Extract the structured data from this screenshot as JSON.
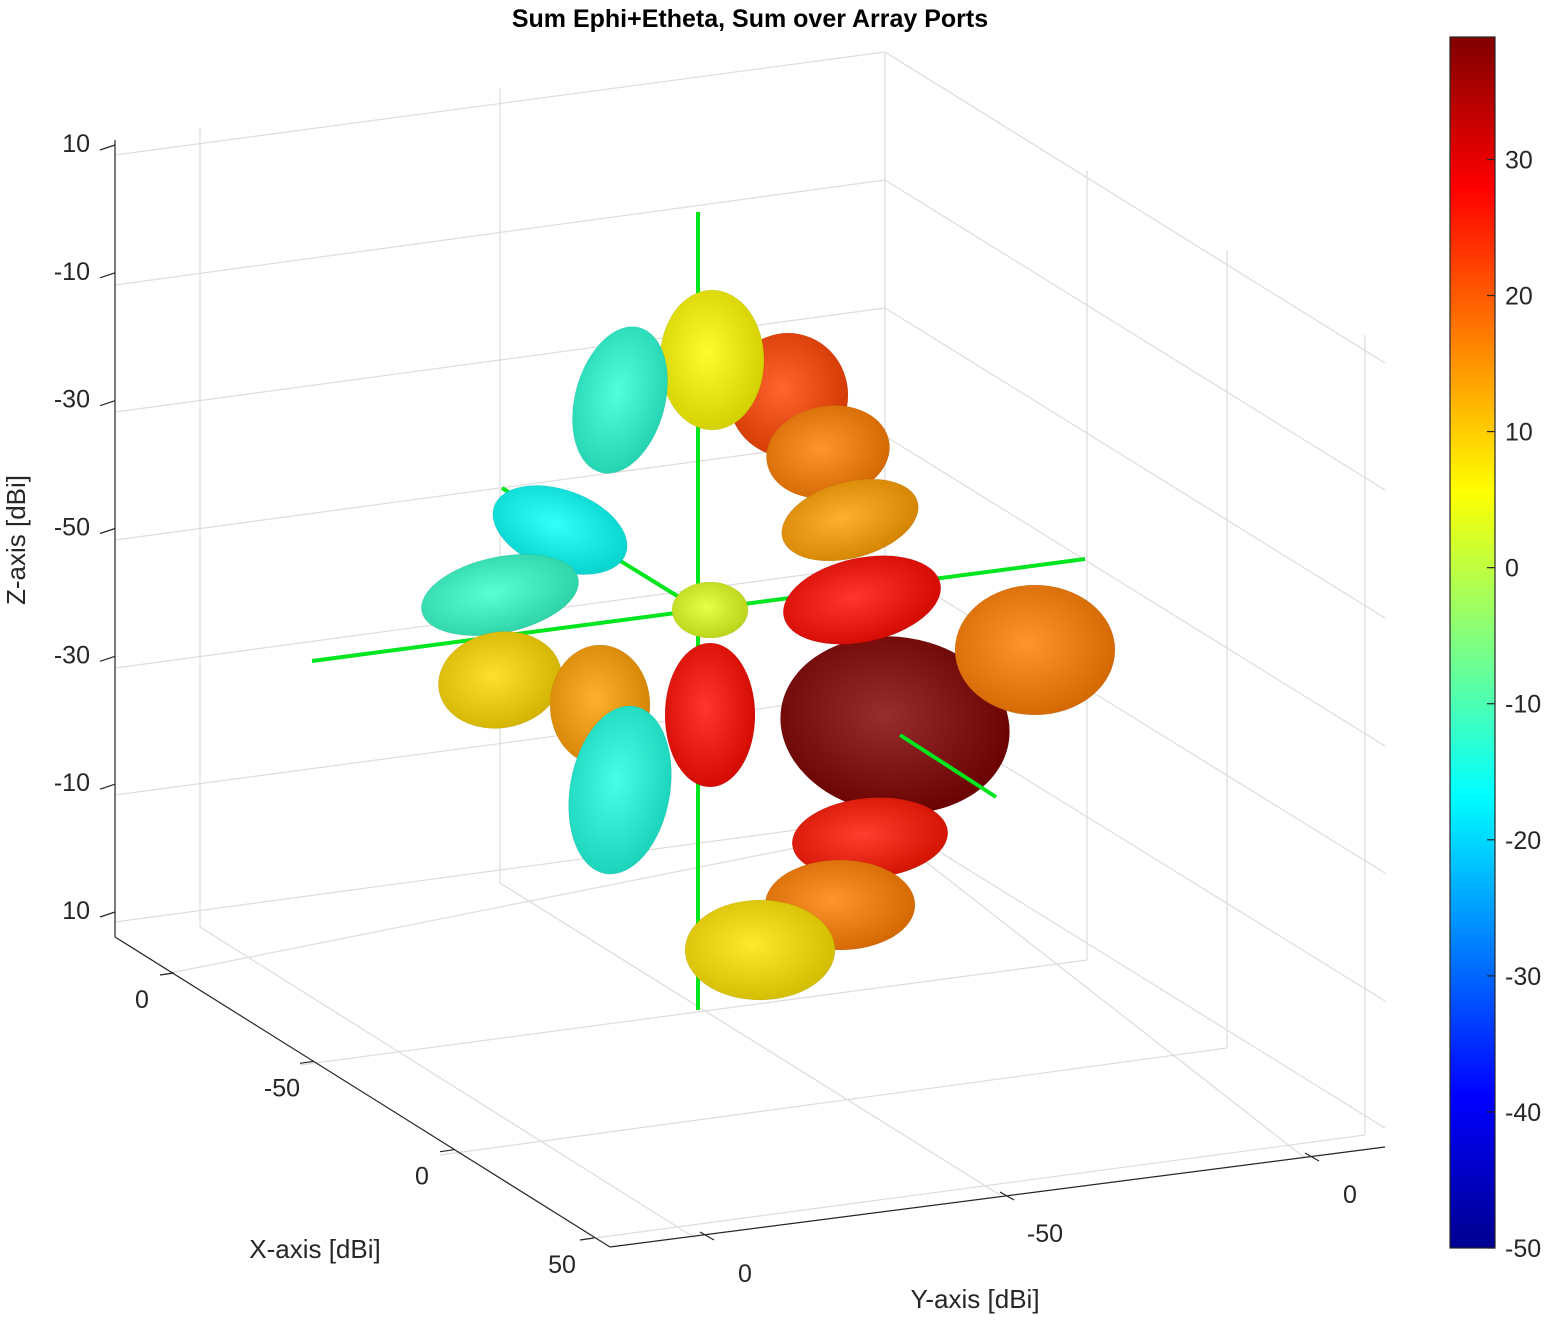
{
  "chart_data": {
    "type": "3d-radiation-pattern",
    "title": "Sum Ephi+Etheta, Sum over Array Ports",
    "xlabel": "X-axis [dBi]",
    "ylabel": "Y-axis [dBi]",
    "zlabel": "Z-axis [dBi]",
    "x_tick_labels": [
      "0",
      "-50",
      "0",
      "50"
    ],
    "y_tick_labels": [
      "0",
      "-50",
      "0"
    ],
    "z_tick_labels": [
      "10",
      "-10",
      "-30",
      "-50",
      "-30",
      "-10",
      "10"
    ],
    "grid": true,
    "colormap": "jet",
    "colorbar": {
      "location": "right",
      "range": [
        -50,
        39
      ],
      "tick_labels": [
        "30",
        "20",
        "10",
        "0",
        "-10",
        "-20",
        "-30",
        "-40",
        "-50"
      ],
      "tick_values": [
        30,
        20,
        10,
        0,
        -10,
        -20,
        -30,
        -40,
        -50
      ]
    },
    "peak_gain_dBi": 39,
    "min_gain_dBi": -50,
    "axis_line_color": "#00e61e",
    "lobes": [
      {
        "name": "main-lobe",
        "gain": 39
      },
      {
        "name": "lobe-right-upper",
        "gain": 27
      },
      {
        "name": "lobe-right-far",
        "gain": 17
      },
      {
        "name": "lobe-upper-right-1",
        "gain": 22
      },
      {
        "name": "lobe-upper-right-2",
        "gain": 17
      },
      {
        "name": "lobe-upper-right-3",
        "gain": 14
      },
      {
        "name": "lobe-top",
        "gain": 6
      },
      {
        "name": "lobe-top-left",
        "gain": -13
      },
      {
        "name": "lobe-left-upper",
        "gain": -16
      },
      {
        "name": "lobe-left-far",
        "gain": -12
      },
      {
        "name": "lobe-left-lower",
        "gain": 9
      },
      {
        "name": "lobe-lower-left",
        "gain": 14
      },
      {
        "name": "lobe-lower-center",
        "gain": 27
      },
      {
        "name": "lobe-center",
        "gain": 3
      },
      {
        "name": "lobe-bottom-1",
        "gain": 26
      },
      {
        "name": "lobe-bottom-2",
        "gain": 17
      },
      {
        "name": "lobe-bottom-3",
        "gain": 8
      },
      {
        "name": "lobe-bottom-left",
        "gain": -14
      }
    ]
  }
}
